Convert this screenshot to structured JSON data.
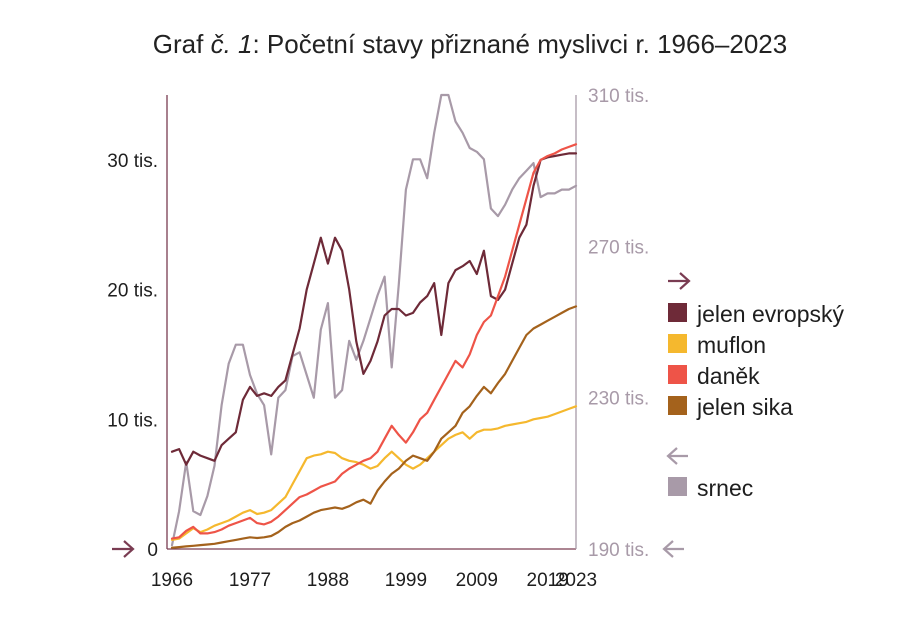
{
  "chart_data": {
    "type": "line",
    "title": "Graf č. 1: Početní stavy přiznané myslivci r. 1966–2023",
    "title_parts": {
      "prefix": "Graf ",
      "italic": "č. 1",
      "rest": ": Početní stavy přiznané myslivci r. 1966–2023"
    },
    "x_tick_labels": [
      "1966",
      "1977",
      "1988",
      "1999",
      "2009",
      "2019",
      "2023"
    ],
    "x_tick_years": [
      1966,
      1977,
      1988,
      1999,
      2009,
      2019,
      2023
    ],
    "x_range": [
      1966,
      2023
    ],
    "left_axis": {
      "range": [
        0,
        35000
      ],
      "ticks": [
        0,
        10000,
        20000,
        30000
      ],
      "tick_labels": [
        "0",
        "10 tis.",
        "20 tis.",
        "30 tis."
      ]
    },
    "right_axis": {
      "range": [
        190000,
        310000
      ],
      "ticks": [
        190000,
        230000,
        270000,
        310000
      ],
      "tick_labels": [
        "190 tis.",
        "230 tis.",
        "270 tis.",
        "310 tis."
      ]
    },
    "colors": {
      "axis": "#7a3c52",
      "right_axis": "#a89aa8"
    },
    "series": [
      {
        "name": "jelen evropský",
        "axis": "left",
        "color": "#6e2a38",
        "x": [
          1966,
          1967,
          1968,
          1969,
          1970,
          1971,
          1972,
          1973,
          1974,
          1975,
          1976,
          1977,
          1978,
          1979,
          1980,
          1981,
          1982,
          1983,
          1984,
          1985,
          1986,
          1987,
          1988,
          1989,
          1990,
          1991,
          1992,
          1993,
          1994,
          1995,
          1996,
          1997,
          1998,
          1999,
          2000,
          2001,
          2002,
          2003,
          2004,
          2005,
          2006,
          2007,
          2008,
          2009,
          2010,
          2011,
          2012,
          2013,
          2014,
          2015,
          2016,
          2017,
          2018,
          2019,
          2020,
          2021,
          2022,
          2023
        ],
        "values": [
          7500,
          7700,
          6500,
          7500,
          7200,
          7000,
          6800,
          8000,
          8500,
          9000,
          11500,
          12500,
          11800,
          12000,
          11800,
          12500,
          13000,
          15000,
          17000,
          20000,
          22000,
          24000,
          22000,
          24000,
          23000,
          20000,
          16000,
          13500,
          14500,
          16000,
          18000,
          18500,
          18500,
          18000,
          18200,
          19000,
          19500,
          20500,
          16500,
          20500,
          21500,
          21800,
          22200,
          21200,
          23000,
          19500,
          19200,
          20000,
          22000,
          24000,
          25000,
          28000,
          30000,
          30200,
          30300,
          30400,
          30500,
          30500
        ]
      },
      {
        "name": "muflon",
        "axis": "left",
        "color": "#f5b82e",
        "x": [
          1966,
          1967,
          1968,
          1969,
          1970,
          1971,
          1972,
          1973,
          1974,
          1975,
          1976,
          1977,
          1978,
          1979,
          1980,
          1981,
          1982,
          1983,
          1984,
          1985,
          1986,
          1987,
          1988,
          1989,
          1990,
          1991,
          1992,
          1993,
          1994,
          1995,
          1996,
          1997,
          1998,
          1999,
          2000,
          2001,
          2002,
          2003,
          2004,
          2005,
          2006,
          2007,
          2008,
          2009,
          2010,
          2011,
          2012,
          2013,
          2014,
          2015,
          2016,
          2017,
          2018,
          2019,
          2020,
          2021,
          2022,
          2023
        ],
        "values": [
          700,
          800,
          1200,
          1600,
          1300,
          1500,
          1800,
          2000,
          2200,
          2500,
          2800,
          3000,
          2700,
          2800,
          3000,
          3500,
          4000,
          5000,
          6000,
          7000,
          7200,
          7300,
          7500,
          7400,
          7000,
          6800,
          6700,
          6500,
          6200,
          6400,
          7000,
          7500,
          7000,
          6500,
          6200,
          6500,
          7000,
          7500,
          8000,
          8500,
          8800,
          9000,
          8500,
          9000,
          9200,
          9200,
          9300,
          9500,
          9600,
          9700,
          9800,
          10000,
          10100,
          10200,
          10400,
          10600,
          10800,
          11000
        ]
      },
      {
        "name": "daněk",
        "axis": "left",
        "color": "#ee5448",
        "x": [
          1966,
          1967,
          1968,
          1969,
          1970,
          1971,
          1972,
          1973,
          1974,
          1975,
          1976,
          1977,
          1978,
          1979,
          1980,
          1981,
          1982,
          1983,
          1984,
          1985,
          1986,
          1987,
          1988,
          1989,
          1990,
          1991,
          1992,
          1993,
          1994,
          1995,
          1996,
          1997,
          1998,
          1999,
          2000,
          2001,
          2002,
          2003,
          2004,
          2005,
          2006,
          2007,
          2008,
          2009,
          2010,
          2011,
          2012,
          2013,
          2014,
          2015,
          2016,
          2017,
          2018,
          2019,
          2020,
          2021,
          2022,
          2023
        ],
        "values": [
          800,
          900,
          1400,
          1700,
          1200,
          1200,
          1300,
          1500,
          1800,
          2000,
          2200,
          2400,
          2000,
          1900,
          2100,
          2500,
          3000,
          3500,
          4000,
          4200,
          4500,
          4800,
          5000,
          5200,
          5800,
          6200,
          6500,
          6800,
          7000,
          7500,
          8500,
          9500,
          8800,
          8200,
          9000,
          10000,
          10500,
          11500,
          12500,
          13500,
          14500,
          14000,
          15000,
          16500,
          17500,
          18000,
          19500,
          21000,
          23000,
          25000,
          27000,
          29000,
          30000,
          30300,
          30500,
          30800,
          31000,
          31200
        ]
      },
      {
        "name": "jelen sika",
        "axis": "left",
        "color": "#a4621c",
        "x": [
          1966,
          1967,
          1968,
          1969,
          1970,
          1971,
          1972,
          1973,
          1974,
          1975,
          1976,
          1977,
          1978,
          1979,
          1980,
          1981,
          1982,
          1983,
          1984,
          1985,
          1986,
          1987,
          1988,
          1989,
          1990,
          1991,
          1992,
          1993,
          1994,
          1995,
          1996,
          1997,
          1998,
          1999,
          2000,
          2001,
          2002,
          2003,
          2004,
          2005,
          2006,
          2007,
          2008,
          2009,
          2010,
          2011,
          2012,
          2013,
          2014,
          2015,
          2016,
          2017,
          2018,
          2019,
          2020,
          2021,
          2022,
          2023
        ],
        "values": [
          100,
          150,
          200,
          250,
          300,
          350,
          400,
          500,
          600,
          700,
          800,
          900,
          850,
          900,
          1000,
          1300,
          1700,
          2000,
          2200,
          2500,
          2800,
          3000,
          3100,
          3200,
          3100,
          3300,
          3600,
          3800,
          3500,
          4500,
          5200,
          5800,
          6200,
          6800,
          7200,
          7000,
          6800,
          7500,
          8500,
          9000,
          9500,
          10500,
          11000,
          11800,
          12500,
          12000,
          12800,
          13500,
          14500,
          15500,
          16500,
          17000,
          17300,
          17600,
          17900,
          18200,
          18500,
          18700
        ]
      },
      {
        "name": "srnec",
        "axis": "right",
        "color": "#a89aa8",
        "x": [
          1966,
          1967,
          1968,
          1969,
          1970,
          1971,
          1972,
          1973,
          1974,
          1975,
          1976,
          1977,
          1978,
          1979,
          1980,
          1981,
          1982,
          1983,
          1984,
          1985,
          1986,
          1987,
          1988,
          1989,
          1990,
          1991,
          1992,
          1993,
          1994,
          1995,
          1996,
          1997,
          1998,
          1999,
          2000,
          2001,
          2002,
          2003,
          2004,
          2005,
          2006,
          2007,
          2008,
          2009,
          2010,
          2011,
          2012,
          2013,
          2014,
          2015,
          2016,
          2017,
          2018,
          2019,
          2020,
          2021,
          2022,
          2023
        ],
        "values": [
          191000,
          200000,
          213000,
          200000,
          199000,
          204000,
          212000,
          228000,
          239000,
          244000,
          244000,
          236000,
          231000,
          228000,
          215000,
          230000,
          232000,
          241000,
          242000,
          236000,
          230000,
          248000,
          255000,
          230000,
          232000,
          245000,
          240000,
          245000,
          251000,
          257000,
          262000,
          238000,
          260000,
          285000,
          293000,
          293000,
          288000,
          300000,
          310000,
          310000,
          303000,
          300000,
          296000,
          295000,
          293000,
          280000,
          278000,
          281000,
          285000,
          288000,
          290000,
          292000,
          283000,
          284000,
          284000,
          285000,
          285000,
          286000
        ]
      }
    ],
    "legend": {
      "position": "right",
      "left_axis_items": [
        "jelen evropský",
        "muflon",
        "daněk",
        "jelen sika"
      ],
      "right_axis_items": [
        "srnec"
      ],
      "left_marker_icon": "arrow-right-icon",
      "right_marker_icon": "arrow-left-icon"
    },
    "grid": false
  }
}
